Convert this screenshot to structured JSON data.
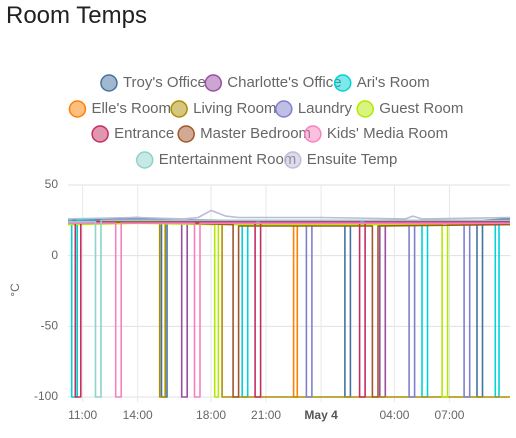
{
  "chart_data": {
    "type": "line",
    "title": "Room Temps",
    "ylabel": "°C",
    "xlim": [
      10.2,
      34.3
    ],
    "ylim": [
      -100,
      50
    ],
    "xticks": [
      {
        "value": 11,
        "label": "11:00"
      },
      {
        "value": 14,
        "label": "14:00"
      },
      {
        "value": 18,
        "label": "18:00"
      },
      {
        "value": 21,
        "label": "21:00"
      },
      {
        "value": 24,
        "label": "May 4"
      },
      {
        "value": 28,
        "label": "04:00"
      },
      {
        "value": 31,
        "label": "07:00"
      }
    ],
    "yticks": [
      -100,
      -50,
      0,
      50
    ],
    "grid": true,
    "series": [
      {
        "name": "Troy's Office",
        "color": "#44739e",
        "x": [
          10.2,
          14,
          15.3,
          15.3,
          15.6,
          15.6,
          25.3,
          25.3,
          25.6,
          25.6,
          32.5,
          32.5,
          32.8,
          32.8,
          34.3
        ],
        "values": [
          25,
          27,
          25,
          -100,
          -100,
          24,
          24,
          -100,
          -100,
          24,
          24,
          -100,
          -100,
          25,
          26
        ]
      },
      {
        "name": "Charlotte's Office",
        "color": "#984ea3",
        "x": [
          10.2,
          14,
          16.4,
          16.4,
          16.7,
          16.7,
          27.2,
          27.2,
          27.5,
          27.5,
          34.3
        ],
        "values": [
          24,
          26,
          24,
          -100,
          -100,
          23,
          23,
          -100,
          -100,
          23,
          24
        ]
      },
      {
        "name": "Ari's Room",
        "color": "#00d2d5",
        "x": [
          10.2,
          10.4,
          10.4,
          10.7,
          10.7,
          19.7,
          19.7,
          20,
          20,
          29.5,
          29.5,
          29.8,
          29.8,
          33.5,
          33.5,
          33.7,
          33.7,
          34.3
        ],
        "values": [
          25,
          25,
          -100,
          -100,
          25,
          25,
          -100,
          -100,
          25,
          25,
          -100,
          -100,
          25,
          25,
          -100,
          -100,
          25,
          25
        ]
      },
      {
        "name": "Elle's Room",
        "color": "#ff7f00",
        "x": [
          10.2,
          14,
          22.5,
          22.5,
          22.7,
          22.7,
          34.3
        ],
        "values": [
          23,
          24,
          23,
          -100,
          -100,
          23,
          23
        ]
      },
      {
        "name": "Living Room",
        "color": "#af8d00",
        "x": [
          10.2,
          14,
          15.2,
          15.2,
          15.5,
          15.5,
          18.6,
          18.6,
          34.3
        ],
        "values": [
          24,
          25,
          24,
          -100,
          -100,
          23,
          23,
          -100,
          -100
        ]
      },
      {
        "name": "Laundry",
        "color": "#7f80cd",
        "x": [
          10.2,
          14,
          23.2,
          23.2,
          23.5,
          23.5,
          28.8,
          28.8,
          29.1,
          29.1,
          31.8,
          31.8,
          32.1,
          32.1,
          34.3
        ],
        "values": [
          24,
          26,
          24,
          -100,
          -100,
          24,
          24,
          -100,
          -100,
          24,
          24,
          -100,
          -100,
          24,
          25
        ]
      },
      {
        "name": "Guest Room",
        "color": "#b3e900",
        "x": [
          10.2,
          14,
          18.2,
          18.2,
          18.4,
          18.4,
          30.6,
          30.6,
          30.9,
          30.9,
          34.3
        ],
        "values": [
          22,
          23,
          22,
          -100,
          -100,
          22,
          22,
          -100,
          -100,
          22,
          22
        ]
      },
      {
        "name": "Entrance",
        "color": "#c42e60",
        "x": [
          10.2,
          10.6,
          10.6,
          10.9,
          10.9,
          20.4,
          20.4,
          20.7,
          20.7,
          26.1,
          26.1,
          26.4,
          26.4,
          34.3
        ],
        "values": [
          24,
          24,
          -100,
          -100,
          24,
          24,
          -100,
          -100,
          24,
          24,
          -100,
          -100,
          24,
          24
        ]
      },
      {
        "name": "Master Bedroom",
        "color": "#a65628",
        "x": [
          10.2,
          14,
          19.2,
          19.2,
          19.5,
          19.5,
          26.8,
          26.8,
          27.1,
          27.1,
          34.3
        ],
        "values": [
          23,
          24,
          22,
          -100,
          -100,
          21,
          21,
          -100,
          -100,
          21,
          22
        ]
      },
      {
        "name": "Kids' Media Room",
        "color": "#f781bf",
        "x": [
          10.2,
          12.8,
          12.8,
          13.1,
          13.1,
          17.1,
          17.1,
          17.4,
          17.4,
          34.3
        ],
        "values": [
          23,
          23,
          -100,
          -100,
          23,
          23,
          -100,
          -100,
          23,
          23
        ]
      },
      {
        "name": "Entertainment Room",
        "color": "#8dd3c7",
        "x": [
          10.2,
          11.7,
          11.7,
          12,
          12,
          34.3
        ],
        "values": [
          24,
          24,
          -100,
          -100,
          25,
          25
        ]
      },
      {
        "name": "Ensuite Temp",
        "color": "#bebada",
        "x": [
          10.2,
          14,
          16.5,
          17.3,
          18,
          18.8,
          19.5,
          24,
          28.6,
          29,
          29.5,
          34.3
        ],
        "values": [
          26,
          27,
          26,
          27,
          32,
          28,
          27,
          27,
          26,
          28,
          26,
          27
        ]
      }
    ]
  }
}
